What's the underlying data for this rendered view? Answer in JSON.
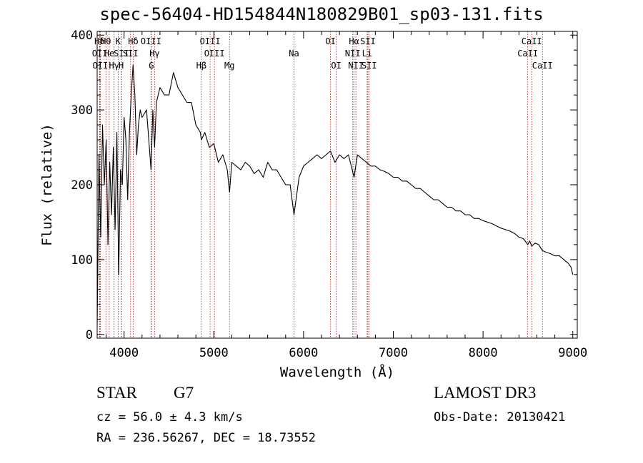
{
  "chart_data": {
    "type": "line",
    "title": "spec-56404-HD154844N180829B01_sp03-131.fits",
    "xlabel": "Wavelength (Å)",
    "ylabel": "Flux (relative)",
    "xlim": [
      3700,
      9050
    ],
    "ylim": [
      -5,
      405
    ],
    "xticks": [
      4000,
      5000,
      6000,
      7000,
      8000,
      9000
    ],
    "yticks": [
      0,
      100,
      200,
      300,
      400
    ],
    "series": [
      {
        "name": "spectrum",
        "x": [
          3700,
          3720,
          3740,
          3760,
          3780,
          3800,
          3820,
          3840,
          3860,
          3880,
          3900,
          3920,
          3940,
          3960,
          3980,
          4000,
          4020,
          4040,
          4060,
          4080,
          4100,
          4120,
          4140,
          4160,
          4180,
          4200,
          4250,
          4300,
          4320,
          4340,
          4360,
          4400,
          4450,
          4500,
          4550,
          4600,
          4650,
          4700,
          4750,
          4800,
          4850,
          4861,
          4900,
          4950,
          5000,
          5050,
          5100,
          5150,
          5175,
          5200,
          5250,
          5300,
          5350,
          5400,
          5450,
          5500,
          5550,
          5600,
          5650,
          5700,
          5750,
          5800,
          5850,
          5893,
          5950,
          6000,
          6050,
          6100,
          6150,
          6200,
          6250,
          6300,
          6350,
          6400,
          6450,
          6500,
          6563,
          6600,
          6650,
          6700,
          6750,
          6800,
          6850,
          6900,
          6950,
          7000,
          7050,
          7100,
          7150,
          7200,
          7250,
          7300,
          7350,
          7400,
          7450,
          7500,
          7550,
          7600,
          7650,
          7700,
          7750,
          7800,
          7850,
          7900,
          7950,
          8000,
          8050,
          8100,
          8150,
          8200,
          8250,
          8300,
          8350,
          8400,
          8450,
          8498,
          8520,
          8542,
          8580,
          8620,
          8662,
          8700,
          8750,
          8800,
          8850,
          8900,
          8950,
          8980,
          9000
        ],
        "values": [
          10,
          240,
          130,
          280,
          200,
          260,
          120,
          230,
          160,
          250,
          140,
          270,
          80,
          220,
          200,
          290,
          260,
          180,
          270,
          320,
          360,
          320,
          240,
          280,
          300,
          290,
          300,
          220,
          300,
          250,
          310,
          330,
          320,
          320,
          350,
          330,
          320,
          310,
          310,
          280,
          270,
          260,
          270,
          250,
          255,
          230,
          240,
          220,
          190,
          230,
          225,
          220,
          230,
          225,
          215,
          220,
          210,
          230,
          220,
          220,
          210,
          200,
          200,
          160,
          210,
          225,
          230,
          235,
          240,
          235,
          240,
          245,
          230,
          240,
          235,
          240,
          210,
          240,
          235,
          230,
          225,
          225,
          220,
          218,
          215,
          210,
          210,
          205,
          205,
          200,
          195,
          195,
          190,
          185,
          180,
          180,
          175,
          170,
          170,
          165,
          165,
          160,
          160,
          155,
          155,
          152,
          150,
          148,
          145,
          142,
          140,
          138,
          135,
          130,
          128,
          120,
          125,
          118,
          122,
          120,
          112,
          110,
          108,
          105,
          105,
          100,
          95,
          90,
          80
        ]
      }
    ],
    "line_markers": [
      {
        "label": "Hδ",
        "x": 3726,
        "row": 1
      },
      {
        "label": "OII",
        "x": 3729,
        "row": 2
      },
      {
        "label": "OII",
        "x": 3735,
        "row": 3
      },
      {
        "label": "Hθ",
        "x": 3798,
        "row": 1
      },
      {
        "label": "He",
        "x": 3835,
        "row": 2
      },
      {
        "label": "Hγ",
        "x": 3889,
        "row": 3
      },
      {
        "label": "K",
        "x": 3934,
        "row": 1
      },
      {
        "label": "SII",
        "x": 3970,
        "row": 2
      },
      {
        "label": "H",
        "x": 3968,
        "row": 3
      },
      {
        "label": "Hδ",
        "x": 4102,
        "row": 1
      },
      {
        "label": "SII",
        "x": 4072,
        "row": 2
      },
      {
        "label": "OIII",
        "x": 4300,
        "row": 1
      },
      {
        "label": "Hγ",
        "x": 4340,
        "row": 2
      },
      {
        "label": "G",
        "x": 4304,
        "row": 3
      },
      {
        "label": "Hβ",
        "x": 4861,
        "row": 3
      },
      {
        "label": "OIII",
        "x": 4959,
        "row": 1
      },
      {
        "label": "OIII",
        "x": 5007,
        "row": 2
      },
      {
        "label": "Mg",
        "x": 5175,
        "row": 3
      },
      {
        "label": "Na",
        "x": 5893,
        "row": 2
      },
      {
        "label": "OI",
        "x": 6300,
        "row": 1
      },
      {
        "label": "OI",
        "x": 6364,
        "row": 3
      },
      {
        "label": "Hα",
        "x": 6563,
        "row": 1
      },
      {
        "label": "NII",
        "x": 6548,
        "row": 2
      },
      {
        "label": "NII",
        "x": 6583,
        "row": 3
      },
      {
        "label": "SII",
        "x": 6717,
        "row": 1
      },
      {
        "label": "Li",
        "x": 6708,
        "row": 2
      },
      {
        "label": "SII",
        "x": 6731,
        "row": 3
      },
      {
        "label": "CaII",
        "x": 8498,
        "row": 2
      },
      {
        "label": "CaII",
        "x": 8542,
        "row": 1
      },
      {
        "label": "CaII",
        "x": 8662,
        "row": 3
      }
    ]
  },
  "info": {
    "type_label": "STAR",
    "subclass": "G7",
    "survey": "LAMOST DR3",
    "cz": "cz = 56.0 ± 4.3 km/s",
    "obs_date": "Obs-Date: 20130421",
    "coords": "RA = 236.56267, DEC =  18.73552"
  },
  "colors": {
    "axis": "#000000",
    "spectrum": "#000000",
    "marker": "#b22222"
  }
}
